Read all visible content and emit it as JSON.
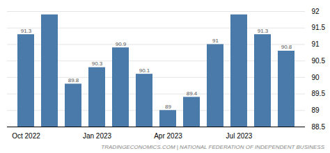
{
  "chart_data": {
    "type": "bar",
    "categories": [
      "Oct 2022",
      null,
      null,
      "Jan 2023",
      null,
      null,
      "Apr 2023",
      null,
      null,
      "Jul 2023",
      null,
      null
    ],
    "values": [
      91.3,
      91.9,
      89.8,
      90.3,
      90.9,
      90.1,
      89.0,
      89.4,
      91.0,
      91.9,
      91.3,
      90.8
    ],
    "value_labels": [
      "91.3",
      null,
      "89.8",
      "90.3",
      "90.9",
      "90.1",
      "89",
      "89.4",
      "91",
      null,
      "91.3",
      "90.8"
    ],
    "data_labels": true,
    "color": "#4a7aaa",
    "ylim": [
      88.5,
      92.0
    ],
    "yticks": [
      88.5,
      89,
      89.5,
      90,
      90.5,
      91,
      91.5,
      92
    ],
    "grid": true,
    "annotations": [
      "TRADINGECONOMICS.COM | NATIONAL FEDERATION OF INDEPENDENT BUSINESS"
    ]
  }
}
